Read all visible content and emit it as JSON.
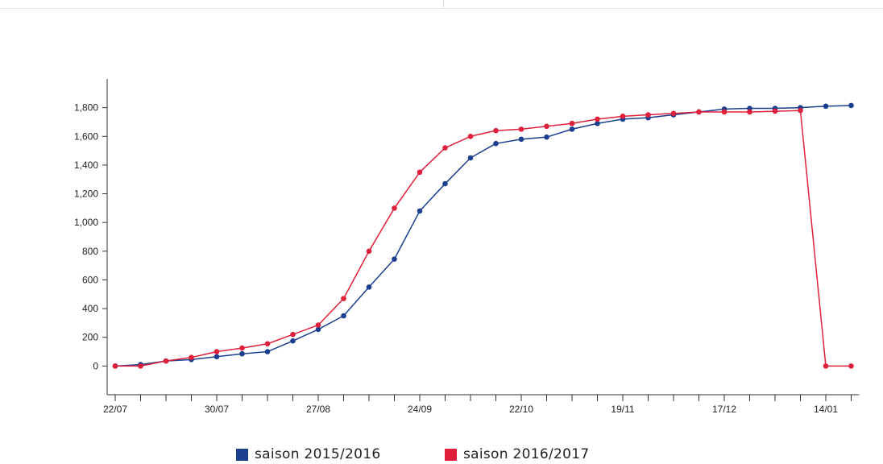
{
  "chart_data": {
    "type": "line",
    "title": "",
    "xlabel": "",
    "ylabel": "",
    "ylim": [
      -200,
      2000
    ],
    "yticks": [
      0,
      200,
      400,
      600,
      800,
      1000,
      1200,
      1400,
      1600,
      1800
    ],
    "ytick_labels": [
      "0",
      "200",
      "400",
      "600",
      "800",
      "1,000",
      "1,200",
      "1,400",
      "1,600",
      "1,800"
    ],
    "xtick_labels": [
      "22/07",
      "30/07",
      "27/08",
      "24/09",
      "22/10",
      "19/11",
      "17/12",
      "14/01"
    ],
    "xtick_label_at": [
      0,
      4,
      8,
      12,
      16,
      20,
      24,
      28
    ],
    "grid": false,
    "legend_position": "bottom",
    "series": [
      {
        "name": "saison 2015/2016",
        "color": "#1a3f8f",
        "values": [
          0,
          10,
          35,
          45,
          65,
          85,
          100,
          175,
          255,
          350,
          550,
          745,
          1080,
          1270,
          1450,
          1550,
          1580,
          1595,
          1650,
          1690,
          1720,
          1730,
          1750,
          1770,
          1790,
          1795,
          1795,
          1800,
          1810,
          1815
        ]
      },
      {
        "name": "saison 2016/2017",
        "color": "#e0203a",
        "values": [
          0,
          0,
          35,
          60,
          100,
          125,
          155,
          220,
          285,
          470,
          800,
          1100,
          1350,
          1520,
          1600,
          1640,
          1650,
          1670,
          1690,
          1720,
          1740,
          1750,
          1760,
          1770,
          1770,
          1770,
          1775,
          1780,
          0,
          0
        ]
      }
    ]
  }
}
